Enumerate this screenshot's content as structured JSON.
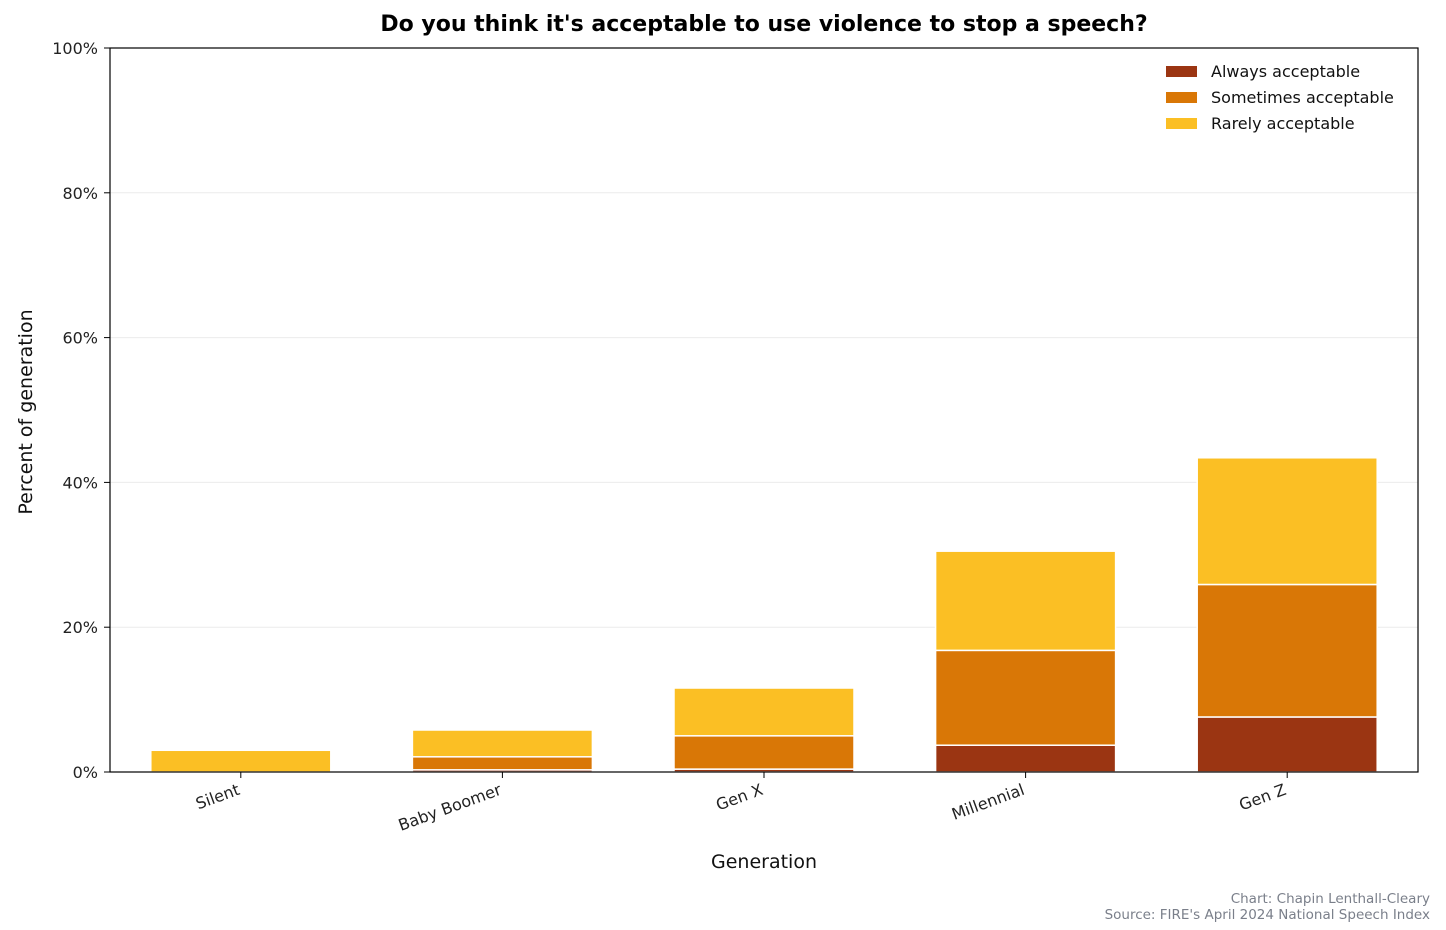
{
  "chart_data": {
    "type": "bar",
    "stacked": true,
    "title": "Do you think it's acceptable to use violence to stop a speech?",
    "xlabel": "Generation",
    "ylabel": "Percent of generation",
    "ylim": [
      0,
      100
    ],
    "yticks": [
      0,
      20,
      40,
      60,
      80,
      100
    ],
    "ytick_labels": [
      "0%",
      "20%",
      "40%",
      "60%",
      "80%",
      "100%"
    ],
    "categories": [
      "Silent",
      "Baby Boomer",
      "Gen X",
      "Millennial",
      "Gen Z"
    ],
    "series": [
      {
        "name": "Always acceptable",
        "color": "#9b3512",
        "values": [
          0,
          0.3,
          0.4,
          3.7,
          7.6
        ]
      },
      {
        "name": "Sometimes acceptable",
        "color": "#d97706",
        "values": [
          0,
          1.8,
          4.6,
          13.1,
          18.3
        ]
      },
      {
        "name": "Rarely acceptable",
        "color": "#fbbf24",
        "values": [
          3.0,
          3.7,
          6.6,
          13.7,
          17.5
        ]
      }
    ],
    "grid": true,
    "legend_position": "top-right"
  },
  "credits": {
    "chart": "Chart: Chapin Lenthall-Cleary",
    "source": "Source: FIRE's April 2024 National Speech Index"
  }
}
